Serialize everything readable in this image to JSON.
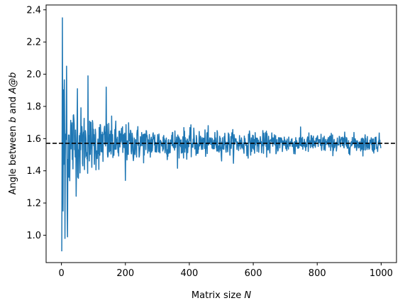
{
  "chart_data": {
    "type": "line",
    "title": "",
    "xlabel_text": "Matrix size ",
    "xlabel_var": "N",
    "ylabel_parts": [
      "Angle between ",
      "b",
      " and ",
      "A@b"
    ],
    "xlim": [
      -48,
      1048
    ],
    "ylim": [
      0.83,
      2.43
    ],
    "xticks": [
      0,
      200,
      400,
      600,
      800,
      1000
    ],
    "yticks": [
      1.0,
      1.2,
      1.4,
      1.6,
      1.8,
      2.0,
      2.2,
      2.4
    ],
    "ytick_labels": [
      "1.0",
      "1.2",
      "1.4",
      "1.6",
      "1.8",
      "2.0",
      "2.2",
      "2.4"
    ],
    "grid": false,
    "series": [
      {
        "style": "solid",
        "color": "#1f77b4",
        "x_start": 1,
        "x_end": 999,
        "mean": 1.5708,
        "spread_at_start": 0.42,
        "spread_scale": 1.7,
        "notable_points": [
          {
            "x": 1,
            "y": 0.9
          },
          {
            "x": 2,
            "y": 1.5
          },
          {
            "x": 3,
            "y": 2.35
          },
          {
            "x": 5,
            "y": 1.15
          },
          {
            "x": 8,
            "y": 1.85
          },
          {
            "x": 11,
            "y": 0.98
          },
          {
            "x": 16,
            "y": 2.05
          },
          {
            "x": 19,
            "y": 0.99
          },
          {
            "x": 50,
            "y": 1.91
          },
          {
            "x": 83,
            "y": 1.99
          },
          {
            "x": 140,
            "y": 1.92
          },
          {
            "x": 200,
            "y": 1.34
          }
        ]
      },
      {
        "style": "dashed",
        "color": "#000000",
        "y": 1.5708
      }
    ]
  }
}
